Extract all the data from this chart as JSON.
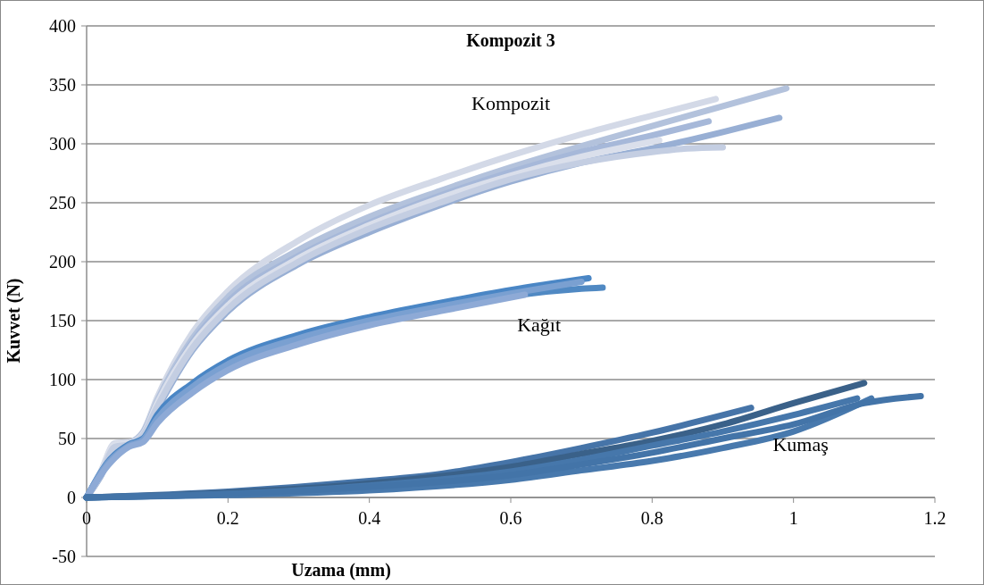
{
  "chart_data": {
    "type": "line",
    "title": "Kompozit 3",
    "xlabel": "Uzama (mm)",
    "ylabel": "Kuvvet (N)",
    "xlim": [
      0,
      1.2
    ],
    "xticks": [
      0,
      0.2,
      0.4,
      0.6,
      0.8,
      1,
      1.2
    ],
    "ylim": [
      -50,
      400
    ],
    "yticks": [
      -50,
      0,
      50,
      100,
      150,
      200,
      250,
      300,
      350,
      400
    ],
    "grid": "y",
    "series": [
      {
        "color": "#d3d9e7",
        "x": [
          0,
          0.02,
          0.04,
          0.06,
          0.08,
          0.1,
          0.15,
          0.2,
          0.3,
          0.4,
          0.5,
          0.6,
          0.7,
          0.8,
          0.89
        ],
        "values": [
          0,
          22,
          46,
          47,
          56,
          85,
          140,
          175,
          218,
          248,
          270,
          290,
          308,
          324,
          338
        ]
      },
      {
        "color": "#b3c2dc",
        "x": [
          0,
          0.02,
          0.04,
          0.06,
          0.08,
          0.1,
          0.15,
          0.2,
          0.3,
          0.4,
          0.5,
          0.6,
          0.7,
          0.8,
          0.9,
          0.99
        ],
        "values": [
          0,
          20,
          44,
          46,
          55,
          82,
          135,
          170,
          210,
          238,
          260,
          280,
          298,
          315,
          332,
          347
        ]
      },
      {
        "color": "#a6b8d9",
        "x": [
          0,
          0.02,
          0.04,
          0.06,
          0.08,
          0.1,
          0.15,
          0.2,
          0.3,
          0.4,
          0.5,
          0.6,
          0.7,
          0.8,
          0.88
        ],
        "values": [
          0,
          20,
          44,
          46,
          55,
          80,
          132,
          166,
          205,
          233,
          256,
          276,
          293,
          307,
          319
        ]
      },
      {
        "color": "#98afd4",
        "x": [
          0,
          0.02,
          0.04,
          0.06,
          0.08,
          0.1,
          0.15,
          0.2,
          0.3,
          0.4,
          0.5,
          0.6,
          0.7,
          0.8,
          0.9,
          0.98
        ],
        "values": [
          0,
          18,
          42,
          45,
          52,
          75,
          125,
          158,
          198,
          225,
          248,
          268,
          284,
          296,
          310,
          322
        ]
      },
      {
        "color": "#dadfeb",
        "x": [
          0,
          0.02,
          0.04,
          0.06,
          0.08,
          0.1,
          0.15,
          0.2,
          0.3,
          0.4,
          0.5,
          0.6,
          0.7,
          0.81
        ],
        "values": [
          0,
          21,
          45,
          46,
          54,
          80,
          130,
          163,
          203,
          231,
          254,
          273,
          289,
          303
        ]
      },
      {
        "color": "#c4cee2",
        "x": [
          0,
          0.02,
          0.04,
          0.06,
          0.08,
          0.1,
          0.15,
          0.2,
          0.3,
          0.4,
          0.5,
          0.6,
          0.7,
          0.8,
          0.85,
          0.9
        ],
        "values": [
          0,
          19,
          43,
          45,
          53,
          77,
          127,
          160,
          200,
          228,
          250,
          270,
          284,
          293,
          296,
          297
        ]
      },
      {
        "color": "#4a86c5",
        "x": [
          0,
          0.03,
          0.06,
          0.08,
          0.1,
          0.15,
          0.2,
          0.3,
          0.4,
          0.5,
          0.6,
          0.71
        ],
        "values": [
          0,
          30,
          45,
          50,
          70,
          97,
          116,
          138,
          153,
          165,
          176,
          186
        ]
      },
      {
        "color": "#5089c3",
        "x": [
          0,
          0.03,
          0.06,
          0.08,
          0.1,
          0.15,
          0.2,
          0.3,
          0.4,
          0.5,
          0.6,
          0.7,
          0.73
        ],
        "values": [
          0,
          28,
          44,
          48,
          66,
          93,
          111,
          133,
          149,
          161,
          171,
          177,
          178
        ]
      },
      {
        "color": "#7aa0d1",
        "x": [
          0,
          0.03,
          0.06,
          0.08,
          0.1,
          0.15,
          0.2,
          0.3,
          0.4,
          0.5,
          0.6,
          0.7
        ],
        "values": [
          0,
          29,
          44,
          49,
          67,
          94,
          113,
          135,
          150,
          162,
          173,
          183
        ]
      },
      {
        "color": "#8eaad6",
        "x": [
          0,
          0.03,
          0.06,
          0.08,
          0.1,
          0.15,
          0.2,
          0.3,
          0.4,
          0.5,
          0.62
        ],
        "values": [
          0,
          27,
          43,
          47,
          63,
          89,
          108,
          130,
          146,
          158,
          172
        ]
      },
      {
        "color": "#4674a8",
        "x": [
          0,
          0.2,
          0.4,
          0.5,
          0.6,
          0.7,
          0.8,
          0.94
        ],
        "values": [
          0,
          5,
          14,
          20,
          30,
          42,
          55,
          76
        ]
      },
      {
        "color": "#3a6189",
        "x": [
          0,
          0.2,
          0.4,
          0.6,
          0.7,
          0.8,
          0.9,
          1,
          1.1
        ],
        "values": [
          0,
          4,
          12,
          26,
          37,
          48,
          62,
          80,
          97
        ]
      },
      {
        "color": "#4677ab",
        "x": [
          0,
          0.2,
          0.4,
          0.6,
          0.7,
          0.8,
          0.9,
          1,
          1.09
        ],
        "values": [
          0,
          3,
          10,
          22,
          32,
          44,
          56,
          70,
          84
        ]
      },
      {
        "color": "#4879ad",
        "x": [
          0,
          0.2,
          0.4,
          0.6,
          0.7,
          0.8,
          0.9,
          1,
          1.11
        ],
        "values": [
          0,
          2,
          6,
          15,
          23,
          31,
          42,
          56,
          84
        ]
      },
      {
        "color": "#4374a8",
        "x": [
          0,
          0.2,
          0.4,
          0.6,
          0.7,
          0.8,
          0.9,
          1,
          1.1,
          1.18
        ],
        "values": [
          0,
          3,
          9,
          19,
          28,
          38,
          50,
          62,
          80,
          86
        ]
      }
    ],
    "annotations": [
      "Kompozit",
      "Kağıt",
      "Kumaş"
    ]
  }
}
